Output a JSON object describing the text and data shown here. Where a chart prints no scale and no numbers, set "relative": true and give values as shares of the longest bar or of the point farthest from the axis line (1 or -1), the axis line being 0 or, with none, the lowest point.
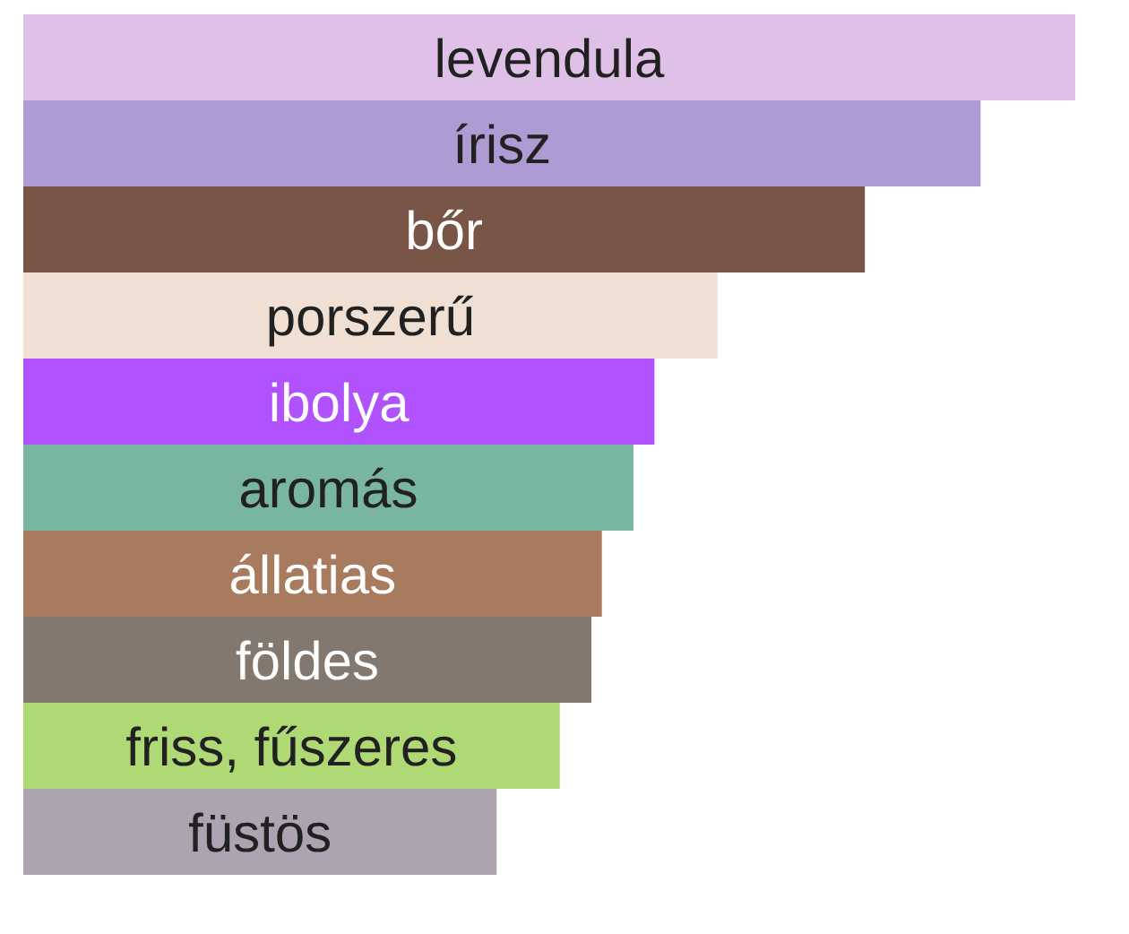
{
  "chart_data": {
    "type": "bar",
    "orientation": "horizontal",
    "relative": true,
    "categories": [
      "levendula",
      "írisz",
      "bőr",
      "porszerű",
      "ibolya",
      "aromás",
      "állatias",
      "földes",
      "friss, fűszeres",
      "füstös"
    ],
    "values": [
      1,
      0.91,
      0.8,
      0.66,
      0.6,
      0.58,
      0.55,
      0.54,
      0.51,
      0.45
    ],
    "colors": [
      "#dfc1e8",
      "#ae9bd3",
      "#795548",
      "#efe0d3",
      "#b052ff",
      "#78b6a3",
      "#a97b5e",
      "#82786f",
      "#afd974",
      "#aca4b0"
    ]
  }
}
